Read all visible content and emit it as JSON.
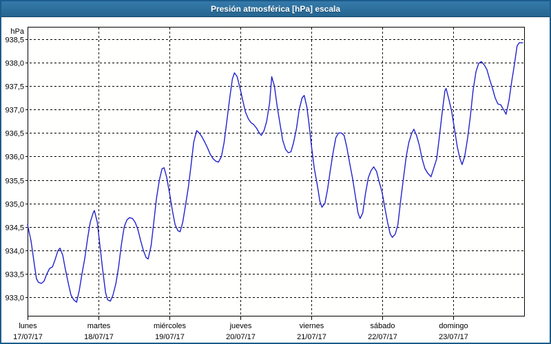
{
  "window": {
    "title": "Presión atmosférica [hPa] escala"
  },
  "colors": {
    "frame": "#1b5c8c",
    "titlebar_top": "#357aab",
    "titlebar_bottom": "#25658f",
    "title_text": "#ffffff",
    "plot_background": "#fffffe",
    "grid": "#000000",
    "axis_text": "#000000",
    "series_line": "#2121cc"
  },
  "chart_data": {
    "type": "line",
    "title": "Presión atmosférica [hPa] escala",
    "unit_label": "hPa",
    "grid": "dashed",
    "legend": "none",
    "x_hours_total": 168,
    "ylim_plot": [
      932.61,
      938.76
    ],
    "y_ticks": [
      {
        "v": 938.5,
        "label": "938,5"
      },
      {
        "v": 938.0,
        "label": "938,0"
      },
      {
        "v": 937.5,
        "label": "937,5"
      },
      {
        "v": 937.0,
        "label": "937,0"
      },
      {
        "v": 936.5,
        "label": "936,5"
      },
      {
        "v": 936.0,
        "label": "936,0"
      },
      {
        "v": 935.5,
        "label": "935,5"
      },
      {
        "v": 935.0,
        "label": "935,0"
      },
      {
        "v": 934.5,
        "label": "934,5"
      },
      {
        "v": 934.0,
        "label": "934,0"
      },
      {
        "v": 933.5,
        "label": "933,5"
      },
      {
        "v": 933.0,
        "label": "933,0"
      }
    ],
    "x_days": [
      {
        "name": "lunes",
        "date": "17/07/17"
      },
      {
        "name": "martes",
        "date": "18/07/17"
      },
      {
        "name": "miércoles",
        "date": "19/07/17"
      },
      {
        "name": "jueves",
        "date": "20/07/17"
      },
      {
        "name": "viernes",
        "date": "21/07/17"
      },
      {
        "name": "sábado",
        "date": "22/07/17"
      },
      {
        "name": "domingo",
        "date": "23/07/17"
      }
    ],
    "series": [
      {
        "name": "Presión atmosférica",
        "color": "#2121cc",
        "points": [
          [
            0,
            934.55
          ],
          [
            1.2,
            934.2
          ],
          [
            2.3,
            933.7
          ],
          [
            3,
            933.4
          ],
          [
            3.7,
            933.32
          ],
          [
            4.7,
            933.3
          ],
          [
            5.6,
            933.35
          ],
          [
            6.5,
            933.5
          ],
          [
            7.5,
            933.62
          ],
          [
            8.4,
            933.65
          ],
          [
            9.3,
            933.8
          ],
          [
            10.3,
            934.0
          ],
          [
            11,
            934.05
          ],
          [
            11.9,
            933.9
          ],
          [
            12.8,
            933.6
          ],
          [
            13.8,
            933.3
          ],
          [
            14.7,
            933.05
          ],
          [
            15.6,
            932.95
          ],
          [
            16.6,
            932.9
          ],
          [
            17.5,
            933.15
          ],
          [
            18.4,
            933.5
          ],
          [
            19.4,
            933.85
          ],
          [
            20.3,
            934.25
          ],
          [
            21.2,
            934.6
          ],
          [
            22.2,
            934.8
          ],
          [
            22.6,
            934.85
          ],
          [
            23.6,
            934.6
          ],
          [
            24.5,
            934.1
          ],
          [
            25.4,
            933.6
          ],
          [
            26.4,
            933.1
          ],
          [
            27.1,
            932.95
          ],
          [
            28,
            932.92
          ],
          [
            28.9,
            933.05
          ],
          [
            29.9,
            933.3
          ],
          [
            30.8,
            933.65
          ],
          [
            31.7,
            934.1
          ],
          [
            32.7,
            934.5
          ],
          [
            33.6,
            934.65
          ],
          [
            34.5,
            934.7
          ],
          [
            35.5,
            934.68
          ],
          [
            36.4,
            934.6
          ],
          [
            37.3,
            934.45
          ],
          [
            38.3,
            934.2
          ],
          [
            39.2,
            934.0
          ],
          [
            40.1,
            933.85
          ],
          [
            40.8,
            933.82
          ],
          [
            41.8,
            934.1
          ],
          [
            42.7,
            934.6
          ],
          [
            43.6,
            935.1
          ],
          [
            44.6,
            935.5
          ],
          [
            45.5,
            935.74
          ],
          [
            46.2,
            935.76
          ],
          [
            47.1,
            935.55
          ],
          [
            48.1,
            935.2
          ],
          [
            49,
            934.85
          ],
          [
            49.9,
            934.55
          ],
          [
            50.9,
            934.42
          ],
          [
            51.6,
            934.4
          ],
          [
            52.5,
            934.6
          ],
          [
            53.4,
            934.95
          ],
          [
            54.4,
            935.35
          ],
          [
            55.3,
            935.8
          ],
          [
            56.2,
            936.3
          ],
          [
            57.2,
            936.55
          ],
          [
            58.1,
            936.5
          ],
          [
            59,
            936.42
          ],
          [
            60,
            936.3
          ],
          [
            60.9,
            936.18
          ],
          [
            61.8,
            936.05
          ],
          [
            62.8,
            935.95
          ],
          [
            63.7,
            935.9
          ],
          [
            64.6,
            935.88
          ],
          [
            65.6,
            936.0
          ],
          [
            66.5,
            936.3
          ],
          [
            67.4,
            936.75
          ],
          [
            68.4,
            937.25
          ],
          [
            69.3,
            937.65
          ],
          [
            70,
            937.78
          ],
          [
            70.9,
            937.7
          ],
          [
            71.9,
            937.45
          ],
          [
            72.8,
            937.2
          ],
          [
            73.7,
            936.95
          ],
          [
            74.7,
            936.8
          ],
          [
            75.6,
            936.72
          ],
          [
            76.5,
            936.68
          ],
          [
            77.5,
            936.6
          ],
          [
            78.4,
            936.5
          ],
          [
            79.1,
            936.45
          ],
          [
            80,
            936.55
          ],
          [
            80.9,
            936.75
          ],
          [
            81.9,
            937.15
          ],
          [
            82.6,
            937.7
          ],
          [
            83.5,
            937.5
          ],
          [
            84.5,
            937.05
          ],
          [
            85.4,
            936.7
          ],
          [
            86.3,
            936.35
          ],
          [
            87.3,
            936.15
          ],
          [
            88.2,
            936.08
          ],
          [
            89.1,
            936.1
          ],
          [
            90,
            936.3
          ],
          [
            91,
            936.6
          ],
          [
            91.9,
            937.0
          ],
          [
            92.9,
            937.25
          ],
          [
            93.6,
            937.3
          ],
          [
            94.5,
            937.05
          ],
          [
            95.2,
            936.7
          ],
          [
            96.1,
            936.2
          ],
          [
            97,
            935.75
          ],
          [
            98,
            935.4
          ],
          [
            98.9,
            935.05
          ],
          [
            99.6,
            934.92
          ],
          [
            100.6,
            935.0
          ],
          [
            101.5,
            935.3
          ],
          [
            102.4,
            935.7
          ],
          [
            103.4,
            936.1
          ],
          [
            104.3,
            936.4
          ],
          [
            105.2,
            936.5
          ],
          [
            106.2,
            936.5
          ],
          [
            107.1,
            936.45
          ],
          [
            108,
            936.2
          ],
          [
            109,
            935.85
          ],
          [
            109.9,
            935.55
          ],
          [
            110.8,
            935.2
          ],
          [
            111.8,
            934.8
          ],
          [
            112.5,
            934.68
          ],
          [
            113.4,
            934.8
          ],
          [
            114.3,
            935.2
          ],
          [
            115.3,
            935.55
          ],
          [
            116.2,
            935.7
          ],
          [
            117.1,
            935.78
          ],
          [
            118.1,
            935.68
          ],
          [
            119,
            935.45
          ],
          [
            119.9,
            935.25
          ],
          [
            120.9,
            934.9
          ],
          [
            121.8,
            934.6
          ],
          [
            122.7,
            934.35
          ],
          [
            123.4,
            934.28
          ],
          [
            124.4,
            934.35
          ],
          [
            125.3,
            934.55
          ],
          [
            126.2,
            935.05
          ],
          [
            127.2,
            935.55
          ],
          [
            128.1,
            936.0
          ],
          [
            129,
            936.3
          ],
          [
            130,
            936.5
          ],
          [
            130.7,
            936.58
          ],
          [
            131.6,
            936.45
          ],
          [
            132.5,
            936.25
          ],
          [
            133.5,
            935.95
          ],
          [
            134.4,
            935.75
          ],
          [
            135.3,
            935.65
          ],
          [
            136.5,
            935.57
          ],
          [
            137.4,
            935.75
          ],
          [
            138.4,
            935.95
          ],
          [
            139.3,
            936.4
          ],
          [
            140.2,
            936.9
          ],
          [
            141.2,
            937.4
          ],
          [
            141.6,
            937.45
          ],
          [
            142.6,
            937.2
          ],
          [
            143.5,
            936.95
          ],
          [
            144.4,
            936.6
          ],
          [
            145.4,
            936.2
          ],
          [
            146.3,
            935.95
          ],
          [
            147,
            935.83
          ],
          [
            147.9,
            936.0
          ],
          [
            148.9,
            936.4
          ],
          [
            149.8,
            936.85
          ],
          [
            150.7,
            937.4
          ],
          [
            151.7,
            937.8
          ],
          [
            152.6,
            937.98
          ],
          [
            153.5,
            938.02
          ],
          [
            154.5,
            937.95
          ],
          [
            155.4,
            937.85
          ],
          [
            156.3,
            937.65
          ],
          [
            157.3,
            937.45
          ],
          [
            158.2,
            937.25
          ],
          [
            159.1,
            937.12
          ],
          [
            160.1,
            937.1
          ],
          [
            161,
            937.0
          ],
          [
            161.9,
            936.9
          ],
          [
            162.9,
            937.2
          ],
          [
            163.8,
            937.6
          ],
          [
            164.7,
            937.95
          ],
          [
            165.6,
            938.35
          ],
          [
            166.3,
            938.42
          ],
          [
            167.5,
            938.42
          ]
        ]
      }
    ]
  }
}
